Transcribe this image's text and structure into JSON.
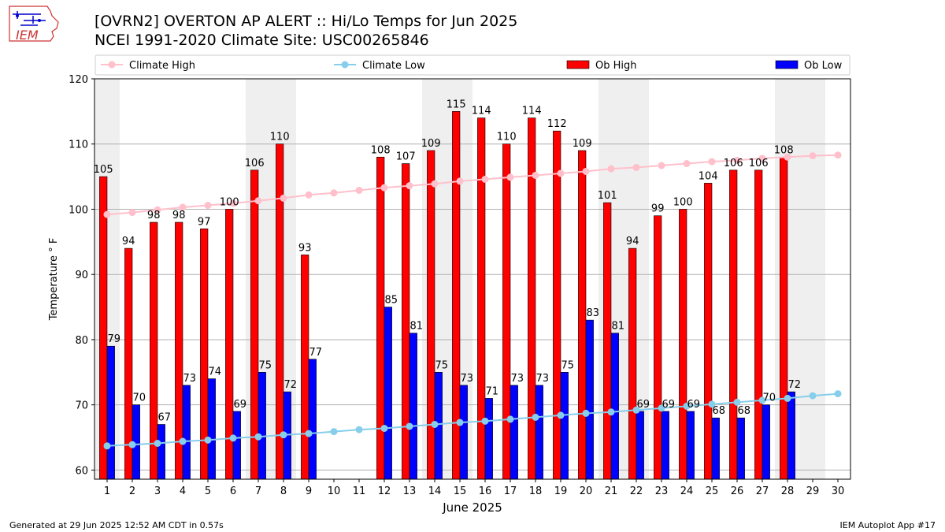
{
  "header": {
    "title_line1": "[OVRN2] OVERTON AP ALERT :: Hi/Lo Temps for Jun 2025",
    "title_line2": "NCEI 1991-2020 Climate Site: USC00265846",
    "logo_text": "IEM"
  },
  "footer": {
    "generated": "Generated at 29 Jun 2025 12:52 AM CDT in 0.57s",
    "app": "IEM Autoplot App #17"
  },
  "colors": {
    "ob_high": "#ff0000",
    "ob_low": "#0000ff",
    "climate_high": "#ffc0cb",
    "climate_low": "#87ceeb",
    "weekend_band": "#efefef",
    "grid": "#b0b0b0"
  },
  "chart_data": {
    "type": "bar",
    "xlabel": "June 2025",
    "ylabel": "Temperature $^\\circ$F",
    "ylim": [
      58.6,
      120
    ],
    "yticks": [
      60,
      70,
      80,
      90,
      100,
      110,
      120
    ],
    "grid": "horizontal",
    "legend_placement": "top",
    "x": [
      1,
      2,
      3,
      4,
      5,
      6,
      7,
      8,
      9,
      10,
      11,
      12,
      13,
      14,
      15,
      16,
      17,
      18,
      19,
      20,
      21,
      22,
      23,
      24,
      25,
      26,
      27,
      28,
      29,
      30
    ],
    "weekend_days": [
      1,
      7,
      8,
      14,
      15,
      21,
      22,
      28,
      29
    ],
    "series": [
      {
        "name": "Climate High",
        "kind": "line",
        "values": [
          99.2,
          99.5,
          99.9,
          100.3,
          100.6,
          100.9,
          101.3,
          101.7,
          102.2,
          102.5,
          102.9,
          103.3,
          103.6,
          103.9,
          104.3,
          104.6,
          104.9,
          105.2,
          105.5,
          105.8,
          106.2,
          106.4,
          106.7,
          107.0,
          107.3,
          107.5,
          107.8,
          108.0,
          108.2,
          108.3
        ]
      },
      {
        "name": "Climate Low",
        "kind": "line",
        "values": [
          63.7,
          63.9,
          64.1,
          64.4,
          64.6,
          64.9,
          65.1,
          65.4,
          65.6,
          65.9,
          66.2,
          66.4,
          66.7,
          67.0,
          67.3,
          67.5,
          67.8,
          68.1,
          68.4,
          68.7,
          68.9,
          69.2,
          69.5,
          69.8,
          70.1,
          70.4,
          70.7,
          71.0,
          71.4,
          71.7
        ]
      },
      {
        "name": "Ob High",
        "kind": "bar",
        "values": [
          105,
          94,
          98,
          98,
          97,
          100,
          106,
          110,
          93,
          null,
          null,
          108,
          107,
          109,
          115,
          114,
          110,
          114,
          112,
          109,
          101,
          94,
          99,
          100,
          104,
          106,
          106,
          108,
          null,
          null
        ]
      },
      {
        "name": "Ob Low",
        "kind": "bar",
        "values": [
          79,
          70,
          67,
          73,
          74,
          69,
          75,
          72,
          77,
          null,
          null,
          85,
          81,
          75,
          73,
          71,
          73,
          73,
          75,
          83,
          81,
          69,
          69,
          69,
          68,
          68,
          70,
          72,
          null,
          null
        ]
      }
    ]
  }
}
